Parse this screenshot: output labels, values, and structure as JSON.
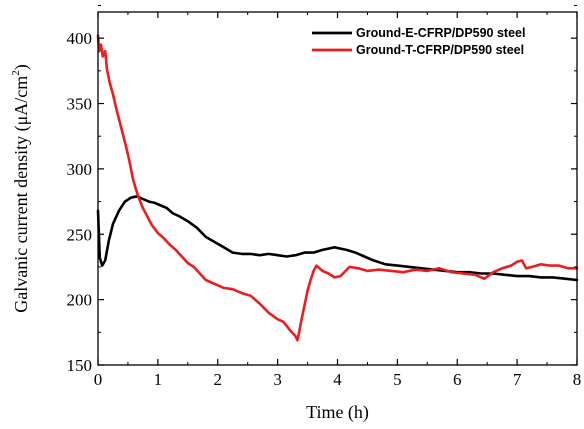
{
  "chart_data": {
    "type": "line",
    "xlabel": "Time (h)",
    "ylabel_main": "Galvanic current density (μA/cm",
    "ylabel_sup": "2",
    "ylabel_close": ")",
    "xlim": [
      0,
      8
    ],
    "ylim": [
      150,
      420
    ],
    "xticks": [
      "0",
      "1",
      "2",
      "3",
      "4",
      "5",
      "6",
      "7",
      "8"
    ],
    "yticks": [
      "150",
      "200",
      "250",
      "300",
      "350",
      "400"
    ],
    "grid": false,
    "legend_position": "top-right",
    "series": [
      {
        "name": "Ground-E-CFRP/DP590 steel",
        "color": "#000000",
        "points": [
          [
            0.0,
            268
          ],
          [
            0.03,
            232
          ],
          [
            0.07,
            226
          ],
          [
            0.12,
            230
          ],
          [
            0.18,
            245
          ],
          [
            0.25,
            258
          ],
          [
            0.35,
            268
          ],
          [
            0.45,
            275
          ],
          [
            0.55,
            278
          ],
          [
            0.65,
            279
          ],
          [
            0.75,
            277
          ],
          [
            0.85,
            275
          ],
          [
            0.95,
            274
          ],
          [
            1.05,
            272
          ],
          [
            1.15,
            270
          ],
          [
            1.25,
            266
          ],
          [
            1.35,
            264
          ],
          [
            1.5,
            260
          ],
          [
            1.65,
            255
          ],
          [
            1.8,
            248
          ],
          [
            1.95,
            244
          ],
          [
            2.1,
            240
          ],
          [
            2.25,
            236
          ],
          [
            2.4,
            235
          ],
          [
            2.55,
            235
          ],
          [
            2.7,
            234
          ],
          [
            2.85,
            235
          ],
          [
            3.0,
            234
          ],
          [
            3.15,
            233
          ],
          [
            3.3,
            234
          ],
          [
            3.45,
            236
          ],
          [
            3.6,
            236
          ],
          [
            3.75,
            238
          ],
          [
            3.85,
            239
          ],
          [
            3.95,
            240
          ],
          [
            4.05,
            239
          ],
          [
            4.15,
            238
          ],
          [
            4.3,
            236
          ],
          [
            4.45,
            233
          ],
          [
            4.6,
            230
          ],
          [
            4.8,
            227
          ],
          [
            5.0,
            226
          ],
          [
            5.2,
            225
          ],
          [
            5.4,
            224
          ],
          [
            5.6,
            223
          ],
          [
            5.8,
            222
          ],
          [
            6.0,
            221
          ],
          [
            6.2,
            221
          ],
          [
            6.4,
            220
          ],
          [
            6.6,
            220
          ],
          [
            6.8,
            219
          ],
          [
            7.0,
            218
          ],
          [
            7.2,
            218
          ],
          [
            7.4,
            217
          ],
          [
            7.6,
            217
          ],
          [
            7.8,
            216
          ],
          [
            8.0,
            215
          ]
        ]
      },
      {
        "name": "Ground-T-CFRP/DP590 steel",
        "color": "#ee1c1c",
        "points": [
          [
            0.0,
            402
          ],
          [
            0.02,
            390
          ],
          [
            0.05,
            395
          ],
          [
            0.08,
            386
          ],
          [
            0.12,
            390
          ],
          [
            0.15,
            376
          ],
          [
            0.2,
            365
          ],
          [
            0.25,
            357
          ],
          [
            0.3,
            347
          ],
          [
            0.35,
            338
          ],
          [
            0.42,
            326
          ],
          [
            0.48,
            315
          ],
          [
            0.53,
            305
          ],
          [
            0.58,
            293
          ],
          [
            0.63,
            285
          ],
          [
            0.68,
            278
          ],
          [
            0.75,
            270
          ],
          [
            0.82,
            264
          ],
          [
            0.9,
            257
          ],
          [
            1.0,
            251
          ],
          [
            1.1,
            247
          ],
          [
            1.2,
            242
          ],
          [
            1.3,
            238
          ],
          [
            1.4,
            233
          ],
          [
            1.5,
            228
          ],
          [
            1.6,
            225
          ],
          [
            1.7,
            220
          ],
          [
            1.8,
            215
          ],
          [
            1.95,
            212
          ],
          [
            2.1,
            209
          ],
          [
            2.25,
            208
          ],
          [
            2.4,
            205
          ],
          [
            2.55,
            203
          ],
          [
            2.7,
            197
          ],
          [
            2.85,
            190
          ],
          [
            3.0,
            185
          ],
          [
            3.1,
            183
          ],
          [
            3.2,
            177
          ],
          [
            3.3,
            172
          ],
          [
            3.33,
            169
          ],
          [
            3.35,
            173
          ],
          [
            3.4,
            185
          ],
          [
            3.45,
            196
          ],
          [
            3.5,
            207
          ],
          [
            3.55,
            215
          ],
          [
            3.6,
            222
          ],
          [
            3.65,
            226
          ],
          [
            3.7,
            224
          ],
          [
            3.75,
            222
          ],
          [
            3.85,
            220
          ],
          [
            3.95,
            217
          ],
          [
            4.05,
            218
          ],
          [
            4.2,
            225
          ],
          [
            4.35,
            224
          ],
          [
            4.5,
            222
          ],
          [
            4.7,
            223
          ],
          [
            4.9,
            222
          ],
          [
            5.1,
            221
          ],
          [
            5.3,
            223
          ],
          [
            5.5,
            222
          ],
          [
            5.7,
            224
          ],
          [
            5.9,
            221
          ],
          [
            6.1,
            220
          ],
          [
            6.3,
            219
          ],
          [
            6.45,
            216
          ],
          [
            6.6,
            221
          ],
          [
            6.75,
            224
          ],
          [
            6.9,
            226
          ],
          [
            7.0,
            229
          ],
          [
            7.08,
            230
          ],
          [
            7.15,
            224
          ],
          [
            7.25,
            225
          ],
          [
            7.4,
            227
          ],
          [
            7.55,
            226
          ],
          [
            7.7,
            226
          ],
          [
            7.85,
            224
          ],
          [
            8.0,
            224
          ]
        ]
      }
    ]
  }
}
